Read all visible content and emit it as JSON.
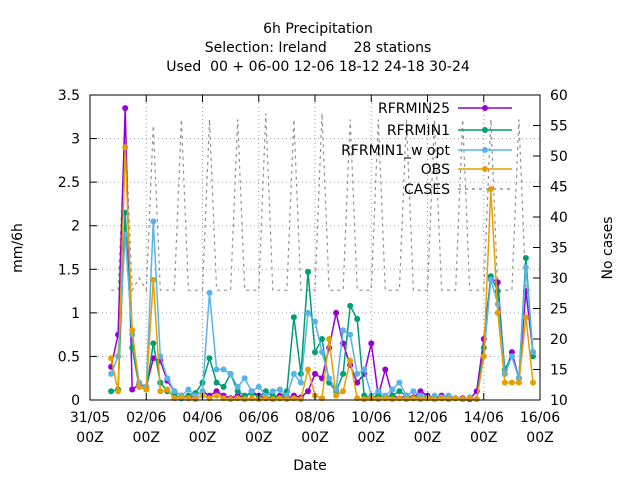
{
  "chart_data": {
    "type": "line",
    "title_lines": [
      "6h Precipitation",
      "Selection: Ireland      28 stations",
      "Used  00 + 06-00 12-06 18-12 24-18 30-24"
    ],
    "xlabel": "Date",
    "ylabel": "mm/6h",
    "y2label": "No cases",
    "x_tick_labels": [
      [
        "31/05",
        "00Z"
      ],
      [
        "02/06",
        "00Z"
      ],
      [
        "04/06",
        "00Z"
      ],
      [
        "06/06",
        "00Z"
      ],
      [
        "08/06",
        "00Z"
      ],
      [
        "10/06",
        "00Z"
      ],
      [
        "12/06",
        "00Z"
      ],
      [
        "14/06",
        "00Z"
      ],
      [
        "16/06",
        "00Z"
      ]
    ],
    "x_ticks": [
      0,
      2,
      4,
      6,
      8,
      10,
      12,
      14,
      16
    ],
    "xlim": [
      0,
      16
    ],
    "ylim": [
      0,
      3.5
    ],
    "y_ticks": [
      "0",
      "0.5",
      "1",
      "1.5",
      "2",
      "2.5",
      "3",
      "3.5"
    ],
    "y2lim": [
      10,
      60
    ],
    "y2_ticks": [
      "10",
      "15",
      "20",
      "25",
      "30",
      "35",
      "40",
      "45",
      "50",
      "55",
      "60"
    ],
    "grid": true,
    "legend_position": "top-right",
    "x_step_days": 0.25,
    "x_start_day": 0.75,
    "series": [
      {
        "name": "RFRMIN25",
        "color": "#9400d3",
        "axis": "y",
        "values": [
          0.38,
          0.75,
          3.35,
          0.12,
          0.18,
          0.15,
          0.48,
          0.45,
          0.22,
          0.1,
          0.05,
          0.02,
          0.05,
          0.1,
          0.05,
          0.1,
          0.05,
          0.02,
          0.05,
          0.03,
          0.1,
          0.05,
          0.02,
          0.03,
          0.05,
          0.02,
          0.05,
          0.03,
          0.1,
          0.3,
          0.25,
          0.6,
          1.0,
          0.65,
          0.4,
          0.2,
          0.3,
          0.65,
          0.05,
          0.35,
          0.05,
          0.02,
          0.05,
          0.03,
          0.1,
          0.05,
          0.02,
          0.05,
          0.03,
          0.02,
          0.02,
          0.01,
          0.1,
          0.7,
          1.4,
          1.35,
          0.3,
          0.55,
          0.25,
          1.25,
          0.55
        ]
      },
      {
        "name": "RFRMIN1",
        "color": "#009e73",
        "axis": "y",
        "values": [
          0.1,
          0.12,
          2.15,
          0.6,
          0.15,
          0.12,
          0.65,
          0.2,
          0.1,
          0.05,
          0.02,
          0.05,
          0.08,
          0.2,
          0.48,
          0.2,
          0.15,
          0.3,
          0.1,
          0.05,
          0.08,
          0.03,
          0.1,
          0.05,
          0.02,
          0.1,
          0.95,
          0.3,
          1.47,
          0.55,
          0.7,
          0.2,
          0.1,
          0.3,
          1.08,
          0.93,
          0.05,
          0.02,
          0.05,
          0.03,
          0.05,
          0.1,
          0.05,
          0.02,
          0.05,
          0.03,
          0.01,
          0.02,
          0.01,
          0.02,
          0.01,
          0.02,
          0.01,
          0.6,
          1.42,
          1.25,
          0.35,
          0.5,
          0.25,
          1.63,
          0.5
        ]
      },
      {
        "name": "RFRMIN1_w opt",
        "color": "#56b4e9",
        "axis": "y",
        "values": [
          0.3,
          0.5,
          1.9,
          0.75,
          0.2,
          0.15,
          2.05,
          0.5,
          0.25,
          0.1,
          0.05,
          0.12,
          0.05,
          0.1,
          1.23,
          0.35,
          0.35,
          0.3,
          0.15,
          0.25,
          0.1,
          0.15,
          0.05,
          0.1,
          0.12,
          0.05,
          0.3,
          0.2,
          1.0,
          0.9,
          0.55,
          0.25,
          0.12,
          0.8,
          0.75,
          0.3,
          0.35,
          0.05,
          0.1,
          0.05,
          0.12,
          0.2,
          0.05,
          0.1,
          0.05,
          0.02,
          0.05,
          0.03,
          0.05,
          0.02,
          0.01,
          0.03,
          0.01,
          0.5,
          1.38,
          1.1,
          0.3,
          0.5,
          0.25,
          1.52,
          0.55
        ]
      },
      {
        "name": "OBS",
        "color": "#e69f00",
        "axis": "y",
        "values": [
          0.48,
          0.1,
          2.9,
          0.8,
          0.15,
          0.12,
          1.38,
          0.1,
          0.12,
          0.02,
          0.03,
          0.02,
          0.01,
          0.05,
          0.02,
          0.05,
          0.02,
          0.01,
          0.02,
          0.01,
          0.02,
          0.01,
          0.02,
          0.01,
          0.02,
          0.01,
          0.02,
          0.01,
          0.35,
          0.05,
          0.02,
          0.7,
          0.05,
          0.1,
          0.45,
          0.02,
          0.01,
          0.02,
          0.01,
          0.02,
          0.01,
          0.02,
          0.01,
          0.02,
          0.01,
          0.02,
          0.01,
          0.02,
          0.01,
          0.02,
          0.01,
          0.02,
          0.01,
          0.5,
          2.42,
          1.0,
          0.2,
          0.2,
          0.2,
          0.95,
          0.2
        ]
      },
      {
        "name": "CASES",
        "color": "#909090",
        "axis": "y2",
        "dashed": true,
        "values": [
          28,
          28,
          55,
          28,
          30,
          28,
          55,
          28,
          28,
          28,
          56,
          28,
          28,
          28,
          56,
          28,
          28,
          28,
          56,
          28,
          28,
          28,
          57,
          28,
          28,
          28,
          56,
          28,
          28,
          28,
          57,
          28,
          28,
          28,
          56,
          28,
          28,
          28,
          56,
          28,
          28,
          28,
          56,
          28,
          28,
          28,
          56,
          28,
          28,
          28,
          56,
          28,
          28,
          28,
          56,
          28,
          28,
          28,
          56,
          28,
          28
        ]
      }
    ]
  }
}
